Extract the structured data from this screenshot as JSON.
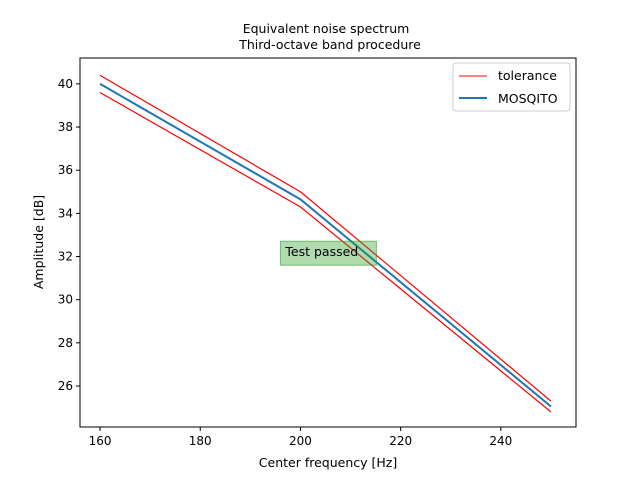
{
  "chart_data": {
    "type": "line",
    "title": [
      "Equivalent noise spectrum",
      "Third-octave band procedure"
    ],
    "xlabel": "Center frequency [Hz]",
    "ylabel": "Amplitude [dB]",
    "xlim": [
      156,
      255
    ],
    "ylim": [
      24.1,
      41.2
    ],
    "xticks": [
      160,
      180,
      200,
      220,
      240
    ],
    "yticks": [
      26,
      28,
      30,
      32,
      34,
      36,
      38,
      40
    ],
    "grid": false,
    "legend": "top-right",
    "x": [
      160,
      200,
      250
    ],
    "series": [
      {
        "name": "tolerance",
        "role": "upper",
        "color": "#ff0000",
        "values": [
          40.4,
          35.0,
          25.3
        ]
      },
      {
        "name": "tolerance",
        "role": "lower",
        "color": "#ff0000",
        "values": [
          39.6,
          34.3,
          24.8
        ]
      },
      {
        "name": "MOSQITO",
        "role": "main",
        "color": "#1f77b4",
        "values": [
          40.0,
          34.65,
          25.05
        ]
      }
    ],
    "annotation": {
      "text": "Test passed",
      "x": 196,
      "y": 32.2,
      "facecolor": "#2ca02c"
    }
  },
  "legend_items": [
    {
      "label": "tolerance",
      "color": "#ff0000"
    },
    {
      "label": "MOSQITO",
      "color": "#1f77b4"
    }
  ]
}
